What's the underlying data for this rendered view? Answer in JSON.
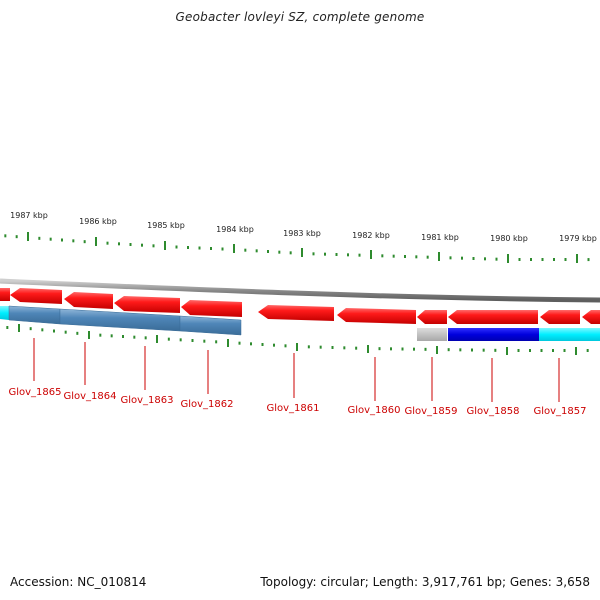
{
  "title": "Geobacter lovleyi SZ, complete genome",
  "footer": {
    "accession": "Accession: NC_010814",
    "topology": "Topology: circular; Length: 3,917,761 bp; Genes: 3,658"
  },
  "colors": {
    "gene": "#ee1111",
    "gene_label": "#cc0000",
    "tick": "#2e8b2e",
    "backbone": "#888888",
    "cds_steelblue": "#4682b4",
    "cds_blue": "#0000dd",
    "cds_cyan": "#00eeff",
    "cds_gray": "#bbbbbb"
  },
  "scale_labels": [
    {
      "text": "1987 kbp",
      "kbp": 1987
    },
    {
      "text": "1986 kbp",
      "kbp": 1986
    },
    {
      "text": "1985 kbp",
      "kbp": 1985
    },
    {
      "text": "1984 kbp",
      "kbp": 1984
    },
    {
      "text": "1983 kbp",
      "kbp": 1983
    },
    {
      "text": "1982 kbp",
      "kbp": 1982
    },
    {
      "text": "1981 kbp",
      "kbp": 1981
    },
    {
      "text": "1980 kbp",
      "kbp": 1980
    },
    {
      "text": "1979 kbp",
      "kbp": 1979
    }
  ],
  "genes": [
    {
      "label": "Glov_1865",
      "strand": "-"
    },
    {
      "label": "Glov_1864",
      "strand": "-"
    },
    {
      "label": "Glov_1863",
      "strand": "-"
    },
    {
      "label": "Glov_1862",
      "strand": "-"
    },
    {
      "label": "Glov_1861",
      "strand": "-"
    },
    {
      "label": "Glov_1860",
      "strand": "-"
    },
    {
      "label": "Glov_1859",
      "strand": "-"
    },
    {
      "label": "Glov_1858",
      "strand": "-"
    },
    {
      "label": "Glov_1857",
      "strand": "-"
    }
  ]
}
